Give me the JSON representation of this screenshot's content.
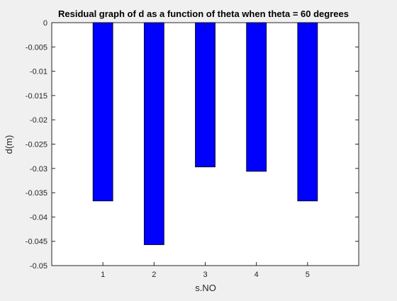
{
  "chart_data": {
    "type": "bar",
    "title": "Residual graph of d as a function of theta when theta = 60 degrees",
    "xlabel": "s.NO",
    "ylabel": "d(m)",
    "categories": [
      "1",
      "2",
      "3",
      "4",
      "5"
    ],
    "values": [
      -0.0367,
      -0.0457,
      -0.0297,
      -0.0306,
      -0.0367
    ],
    "xlim": [
      0,
      6
    ],
    "ylim": [
      -0.05,
      0
    ],
    "yticks": [
      "0",
      "-0.005",
      "-0.01",
      "-0.015",
      "-0.02",
      "-0.025",
      "-0.03",
      "-0.035",
      "-0.04",
      "-0.045",
      "-0.05"
    ],
    "ytick_values": [
      0,
      -0.005,
      -0.01,
      -0.015,
      -0.02,
      -0.025,
      -0.03,
      -0.035,
      -0.04,
      -0.045,
      -0.05
    ],
    "grid": false,
    "legend": "none",
    "colors": {
      "bar_fill": "#0000ff",
      "bar_edge": "#000000",
      "axes_bg": "#ffffff",
      "figure_bg": "#f0f0f0",
      "axis_color": "#262626"
    }
  }
}
